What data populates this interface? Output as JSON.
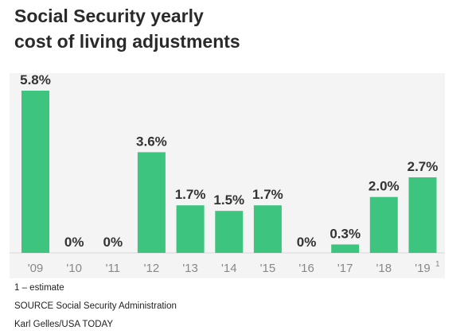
{
  "title_lines": [
    "Social Security yearly",
    "cost of living adjustments"
  ],
  "chart_data": {
    "type": "bar",
    "title": "Social Security yearly cost of living adjustments",
    "categories": [
      "'09",
      "'10",
      "'11",
      "'12",
      "'13",
      "'14",
      "'15",
      "'16",
      "'17",
      "'18",
      "'19"
    ],
    "values": [
      5.8,
      0,
      0,
      3.6,
      1.7,
      1.5,
      1.7,
      0,
      0.3,
      2.0,
      2.7
    ],
    "data_labels": [
      "5.8%",
      "0%",
      "0%",
      "3.6%",
      "1.7%",
      "1.5%",
      "1.7%",
      "0%",
      "0.3%",
      "2.0%",
      "2.7%"
    ],
    "footnote_marks": [
      "",
      "",
      "",
      "",
      "",
      "",
      "",
      "",
      "",
      "",
      "1"
    ],
    "xlabel": "",
    "ylabel": "",
    "ylim": [
      0,
      5.8
    ],
    "grid": false,
    "bar_color": "#3dc47e"
  },
  "footnote": "1 – estimate",
  "source": "SOURCE Social Security Administration",
  "credit": "Karl Gelles/USA TODAY"
}
